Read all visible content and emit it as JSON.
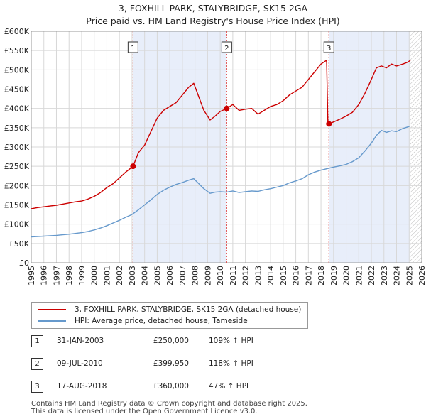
{
  "chart_data": {
    "type": "line",
    "title": "3, FOXHILL PARK, STALYBRIDGE, SK15 2GA",
    "subtitle": "Price paid vs. HM Land Registry's House Price Index (HPI)",
    "xlabel": "",
    "ylabel": "",
    "xlim": [
      1995,
      2026
    ],
    "ylim": [
      0,
      600000
    ],
    "y_ticks": [
      0,
      50000,
      100000,
      150000,
      200000,
      250000,
      300000,
      350000,
      400000,
      450000,
      500000,
      550000,
      600000
    ],
    "y_tick_labels": [
      "£0",
      "£50K",
      "£100K",
      "£150K",
      "£200K",
      "£250K",
      "£300K",
      "£350K",
      "£400K",
      "£450K",
      "£500K",
      "£550K",
      "£600K"
    ],
    "x_ticks": [
      1995,
      1996,
      1997,
      1998,
      1999,
      2000,
      2001,
      2002,
      2003,
      2004,
      2005,
      2006,
      2007,
      2008,
      2009,
      2010,
      2011,
      2012,
      2013,
      2014,
      2015,
      2016,
      2017,
      2018,
      2019,
      2020,
      2021,
      2022,
      2023,
      2024,
      2025,
      2026
    ],
    "x_tick_labels": [
      "1995",
      "1996",
      "1997",
      "1998",
      "1999",
      "2000",
      "2001",
      "2002",
      "2003",
      "2004",
      "2005",
      "2006",
      "2007",
      "2008",
      "2009",
      "2010",
      "2011",
      "2012",
      "2013",
      "2014",
      "2015",
      "2016",
      "2017",
      "2018",
      "2019",
      "2020",
      "2021",
      "2022",
      "2023",
      "2024",
      "2025",
      "2026"
    ],
    "grid": true,
    "shaded_periods": [
      [
        2003.08,
        2010.52
      ],
      [
        2018.63,
        2025.1
      ]
    ],
    "hatched_from": 2025.1,
    "series": [
      {
        "name": "3, FOXHILL PARK, STALYBRIDGE, SK15 2GA (detached house)",
        "color": "#cc0000",
        "x": [
          1995.0,
          1995.5,
          1996.0,
          1996.5,
          1997.0,
          1997.5,
          1998.0,
          1998.5,
          1999.0,
          1999.5,
          2000.0,
          2000.5,
          2001.0,
          2001.5,
          2002.0,
          2002.5,
          2003.08,
          2003.5,
          2004.0,
          2004.5,
          2005.0,
          2005.5,
          2006.0,
          2006.5,
          2007.0,
          2007.5,
          2007.9,
          2008.3,
          2008.7,
          2009.2,
          2009.6,
          2010.0,
          2010.52,
          2011.0,
          2011.5,
          2012.0,
          2012.5,
          2013.0,
          2013.5,
          2014.0,
          2014.5,
          2015.0,
          2015.5,
          2016.0,
          2016.5,
          2017.0,
          2017.5,
          2018.0,
          2018.45,
          2018.55,
          2018.63,
          2019.0,
          2019.5,
          2020.0,
          2020.5,
          2021.0,
          2021.5,
          2022.0,
          2022.4,
          2022.8,
          2023.2,
          2023.6,
          2024.0,
          2024.5,
          2024.9,
          2025.1
        ],
        "values": [
          140000,
          143000,
          145000,
          147000,
          149000,
          152000,
          155000,
          158000,
          160000,
          165000,
          172000,
          182000,
          195000,
          205000,
          220000,
          235000,
          250000,
          285000,
          305000,
          340000,
          375000,
          395000,
          405000,
          415000,
          435000,
          455000,
          465000,
          430000,
          395000,
          370000,
          380000,
          392000,
          399950,
          410000,
          395000,
          398000,
          400000,
          385000,
          395000,
          405000,
          410000,
          420000,
          435000,
          445000,
          455000,
          475000,
          495000,
          515000,
          525000,
          365000,
          360000,
          365000,
          372000,
          380000,
          390000,
          410000,
          440000,
          475000,
          505000,
          510000,
          505000,
          515000,
          510000,
          515000,
          520000,
          525000
        ]
      },
      {
        "name": "HPI: Average price, detached house, Tameside",
        "color": "#6699cc",
        "x": [
          1995.0,
          1995.5,
          1996.0,
          1996.5,
          1997.0,
          1997.5,
          1998.0,
          1998.5,
          1999.0,
          1999.5,
          2000.0,
          2000.5,
          2001.0,
          2001.5,
          2002.0,
          2002.5,
          2003.0,
          2003.5,
          2004.0,
          2004.5,
          2005.0,
          2005.5,
          2006.0,
          2006.5,
          2007.0,
          2007.5,
          2007.9,
          2008.3,
          2008.7,
          2009.2,
          2009.6,
          2010.0,
          2010.5,
          2011.0,
          2011.5,
          2012.0,
          2012.5,
          2013.0,
          2013.5,
          2014.0,
          2014.5,
          2015.0,
          2015.5,
          2016.0,
          2016.5,
          2017.0,
          2017.5,
          2018.0,
          2018.5,
          2019.0,
          2019.5,
          2020.0,
          2020.5,
          2021.0,
          2021.5,
          2022.0,
          2022.4,
          2022.8,
          2023.2,
          2023.6,
          2024.0,
          2024.5,
          2024.9,
          2025.1
        ],
        "values": [
          67000,
          68000,
          69000,
          70000,
          71000,
          72500,
          74000,
          76000,
          78000,
          81000,
          85000,
          90000,
          96000,
          103000,
          110000,
          118000,
          125000,
          137000,
          150000,
          163000,
          177000,
          188000,
          196000,
          203000,
          208000,
          214000,
          218000,
          205000,
          192000,
          180000,
          183000,
          184000,
          183000,
          186000,
          182000,
          184000,
          186000,
          185000,
          189000,
          192000,
          196000,
          200000,
          207000,
          212000,
          218000,
          228000,
          235000,
          240000,
          244000,
          248000,
          251000,
          255000,
          262000,
          272000,
          290000,
          310000,
          330000,
          343000,
          338000,
          342000,
          340000,
          348000,
          352000,
          355000
        ]
      }
    ],
    "sales": [
      {
        "label": "1",
        "x": 2003.08,
        "value": 250000
      },
      {
        "label": "2",
        "x": 2010.52,
        "value": 399950
      },
      {
        "label": "3",
        "x": 2018.63,
        "value": 360000
      }
    ]
  },
  "legend": {
    "property": "3, FOXHILL PARK, STALYBRIDGE, SK15 2GA (detached house)",
    "hpi": "HPI: Average price, detached house, Tameside",
    "property_color": "#cc0000",
    "hpi_color": "#6699cc"
  },
  "sales_table": [
    {
      "num": "1",
      "date": "31-JAN-2003",
      "price": "£250,000",
      "pct": "109% ↑ HPI"
    },
    {
      "num": "2",
      "date": "09-JUL-2010",
      "price": "£399,950",
      "pct": "118% ↑ HPI"
    },
    {
      "num": "3",
      "date": "17-AUG-2018",
      "price": "£360,000",
      "pct": "47% ↑ HPI"
    }
  ],
  "footer": {
    "line1": "Contains HM Land Registry data © Crown copyright and database right 2025.",
    "line2": "This data is licensed under the Open Government Licence v3.0."
  }
}
